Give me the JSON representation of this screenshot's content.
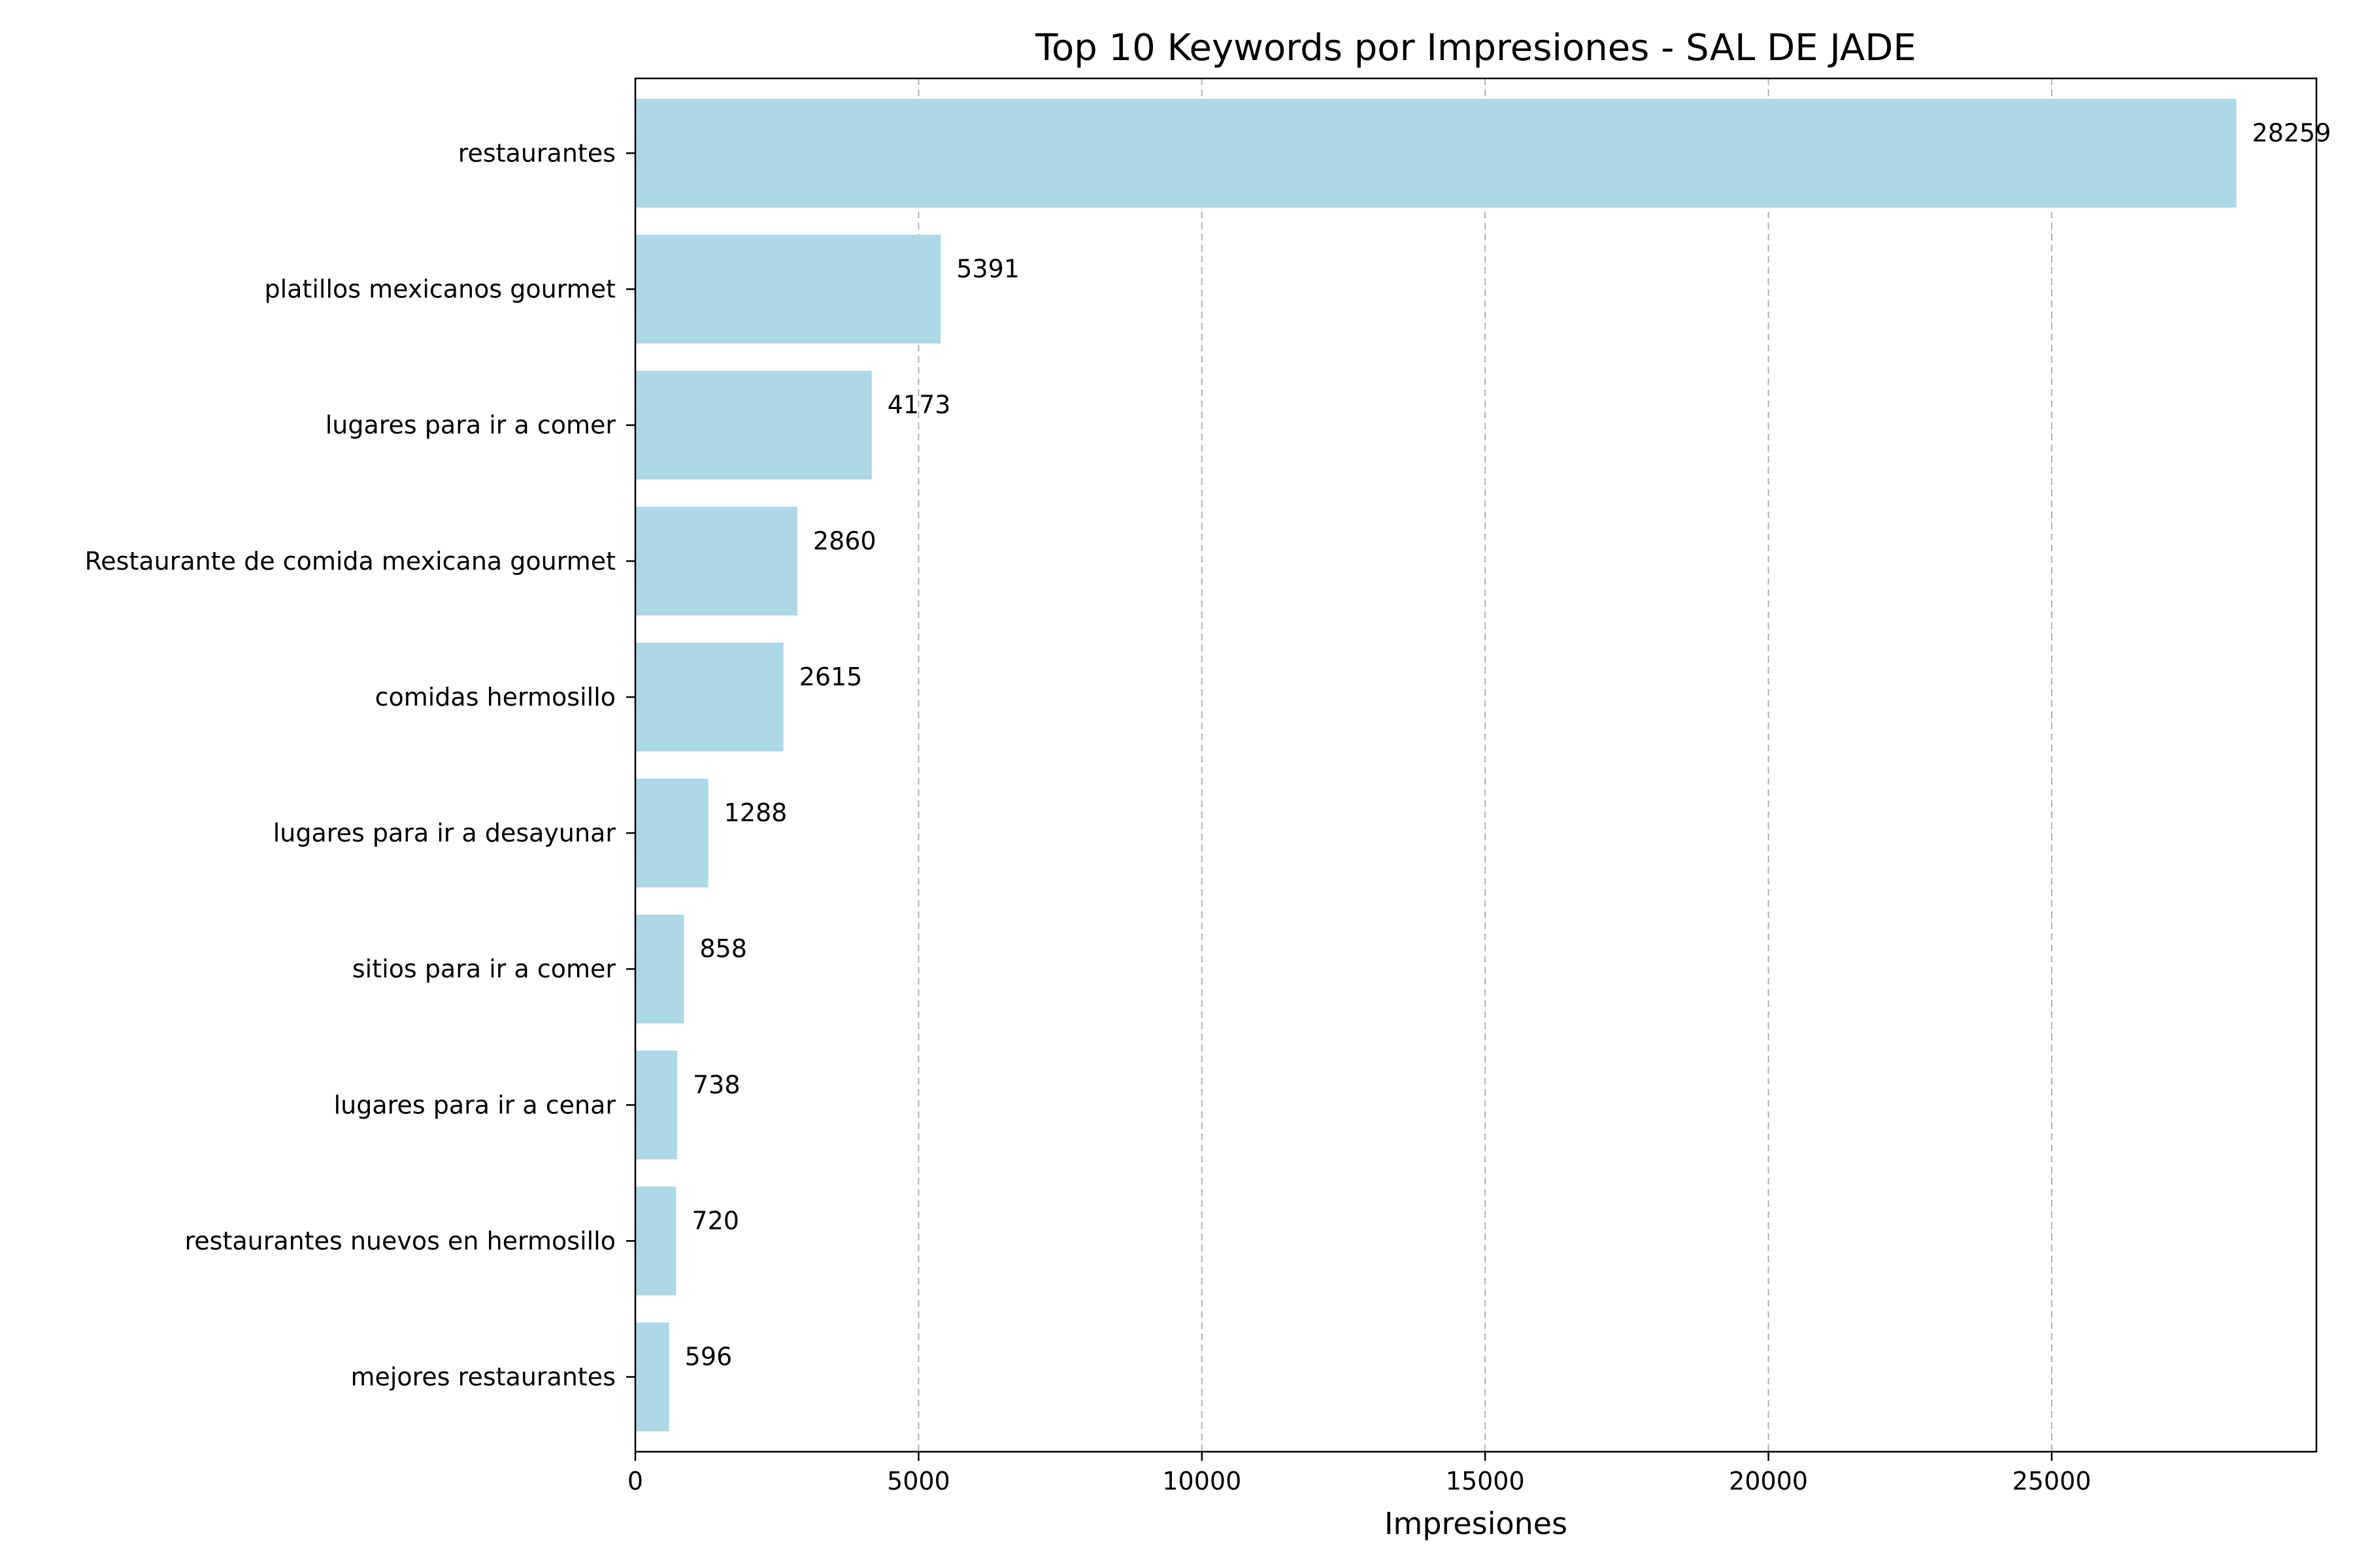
{
  "chart_data": {
    "type": "bar",
    "orientation": "horizontal",
    "title": "Top 10 Keywords por Impresiones - SAL DE JADE",
    "xlabel": "Impresiones",
    "ylabel": "",
    "categories": [
      "restaurantes",
      "platillos mexicanos gourmet",
      "lugares para ir a comer",
      "Restaurante de comida mexicana gourmet",
      "comidas hermosillo",
      "lugares para ir a desayunar",
      "sitios para ir a comer",
      "lugares para ir a cenar",
      "restaurantes nuevos en hermosillo",
      "mejores restaurantes"
    ],
    "values": [
      28259,
      5391,
      4173,
      2860,
      2615,
      1288,
      858,
      738,
      720,
      596
    ],
    "data_labels": [
      "28259",
      "5391",
      "4173",
      "2860",
      "2615",
      "1288",
      "858",
      "738",
      "720",
      "596"
    ],
    "xlim": [
      0,
      29672
    ],
    "xticks": [
      0,
      5000,
      10000,
      15000,
      20000,
      25000
    ],
    "xtick_labels": [
      "0",
      "5000",
      "10000",
      "15000",
      "20000",
      "25000"
    ],
    "grid": "x-axis dashed",
    "bar_color": "#add8e6"
  }
}
